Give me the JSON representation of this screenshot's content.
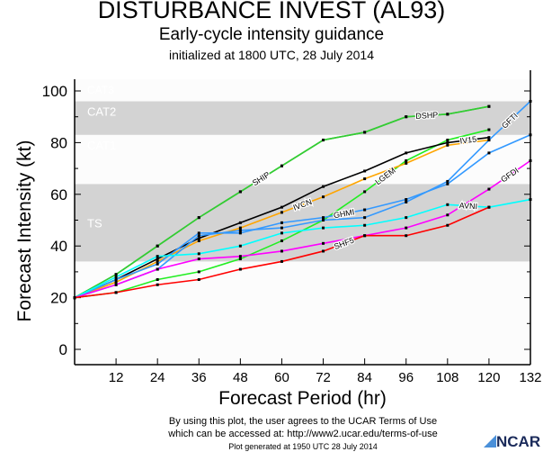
{
  "title": "DISTURBANCE INVEST (AL93)",
  "subtitle": "Early-cycle intensity guidance",
  "initialized": "initialized at 1800 UTC, 28 July 2014",
  "terms_line1": "By using this plot, the user agrees to the UCAR Terms of Use",
  "terms_line2": "which can be accessed at: http://www2.ucar.edu/terms-of-use",
  "generated": "Plot generated at 1950 UTC   28 July 2014",
  "logo": "NCAR",
  "chart_data": {
    "type": "line",
    "xlabel": "Forecast Period (hr)",
    "ylabel": "Forecast Intensity (kt)",
    "xlim": [
      0,
      132
    ],
    "ylim": [
      0,
      105
    ],
    "xticks": [
      12,
      24,
      36,
      48,
      60,
      72,
      84,
      96,
      108,
      120,
      132
    ],
    "yticks": [
      0,
      20,
      40,
      60,
      80,
      100
    ],
    "bands": [
      {
        "label": "TS",
        "min": 34,
        "max": 64,
        "color": "#d3d3d3"
      },
      {
        "label": "CAT1",
        "min": 64,
        "max": 83,
        "color": "#fcfcfc"
      },
      {
        "label": "CAT2",
        "min": 83,
        "max": 96,
        "color": "#d3d3d3"
      },
      {
        "label": "CAT3",
        "min": 96,
        "max": 113,
        "color": "#fcfcfc"
      }
    ],
    "x": [
      0,
      12,
      24,
      36,
      48,
      60,
      72,
      84,
      96,
      108,
      120,
      132
    ],
    "series": [
      {
        "name": "SHIP",
        "color": "#33cc33",
        "values": [
          20,
          29,
          40,
          51,
          61,
          71,
          81,
          84,
          90,
          91,
          94,
          null
        ]
      },
      {
        "name": "DSHP",
        "color": "#33cc33",
        "values": [
          20,
          29,
          40,
          51,
          61,
          71,
          81,
          84,
          90,
          91,
          94,
          null
        ]
      },
      {
        "name": "LGEM",
        "color": "#22ee22",
        "values": [
          20,
          22,
          27,
          30,
          35,
          42,
          50,
          61,
          73,
          81,
          85,
          null
        ]
      },
      {
        "name": "IV15",
        "color": "#000000",
        "values": [
          20,
          27,
          35,
          43,
          49,
          55,
          63,
          69,
          76,
          80,
          82,
          null
        ]
      },
      {
        "name": "IVCN",
        "color": "#ffa500",
        "values": [
          20,
          26,
          34,
          42,
          47,
          53,
          59,
          66,
          72,
          79,
          81,
          null
        ]
      },
      {
        "name": "GFTI",
        "color": "#3399ff",
        "values": [
          20,
          25,
          31,
          44,
          46,
          47,
          50,
          51,
          57,
          65,
          81,
          96
        ]
      },
      {
        "name": "GHMI",
        "color": "#3399ff",
        "values": [
          20,
          27,
          33,
          45,
          45,
          49,
          51,
          54,
          58,
          64,
          76,
          83
        ]
      },
      {
        "name": "AVNI",
        "color": "#00ffff",
        "values": [
          20,
          28,
          36,
          37,
          40,
          45,
          47,
          48,
          51,
          56,
          55,
          58
        ]
      },
      {
        "name": "GFDI",
        "color": "#ff00ff",
        "values": [
          20,
          25,
          31,
          35,
          36,
          38,
          41,
          44,
          47,
          52,
          62,
          73
        ]
      },
      {
        "name": "SHF5",
        "color": "#ff0000",
        "values": [
          20,
          22,
          25,
          27,
          31,
          34,
          38,
          44,
          44,
          48,
          55,
          null
        ]
      }
    ]
  }
}
